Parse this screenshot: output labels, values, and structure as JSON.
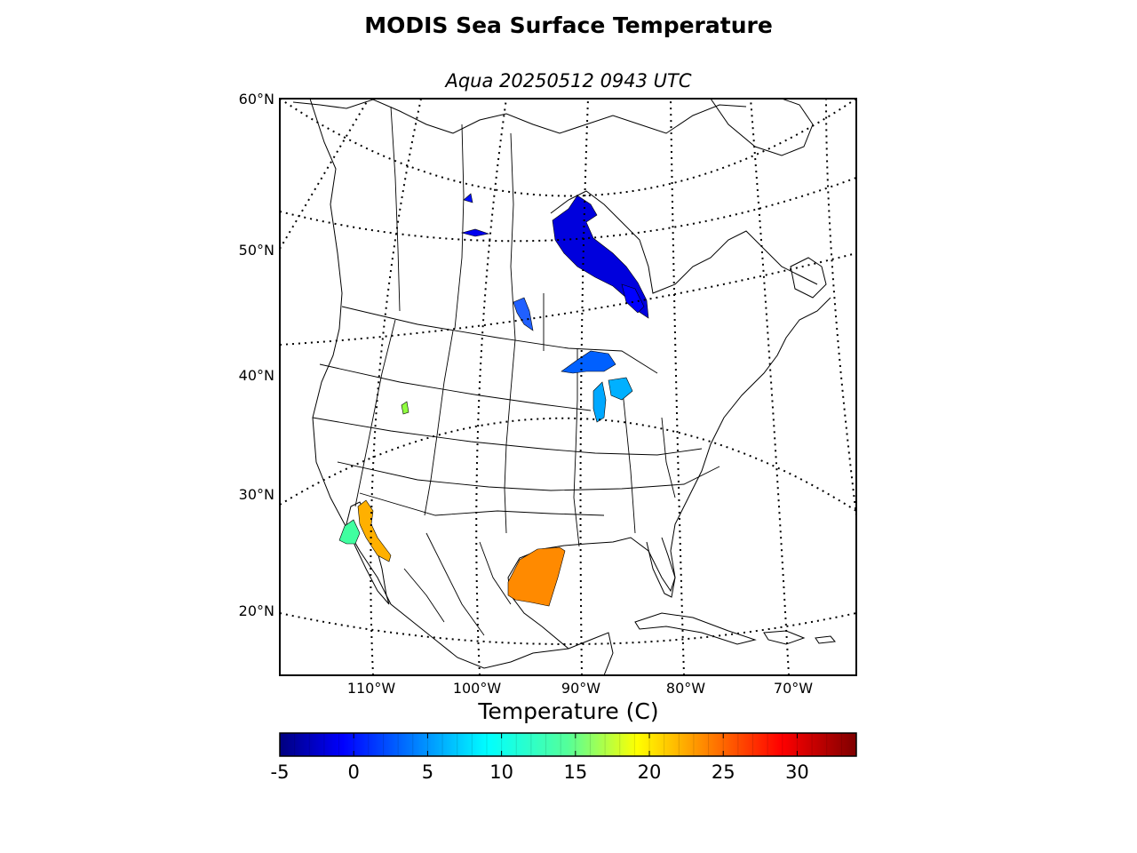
{
  "title": "MODIS Sea Surface Temperature",
  "subtitle": "Aqua 20250512 0943 UTC",
  "map": {
    "lat_labels": [
      "60°N",
      "50°N",
      "40°N",
      "30°N",
      "20°N"
    ],
    "lon_labels": [
      "110°W",
      "100°W",
      "90°W",
      "80°W",
      "70°W"
    ],
    "graticule_style": "dotted",
    "projection": "conic"
  },
  "colorbar": {
    "label": "Temperature (C)",
    "min": -5,
    "max": 34,
    "ticks": [
      "-5",
      "0",
      "5",
      "10",
      "15",
      "20",
      "25",
      "30"
    ],
    "colormap": "jet"
  },
  "sst_regions": [
    {
      "name": "Hudson Bay",
      "temperature_c": 0
    },
    {
      "name": "Great Lakes",
      "temperature_c": 6
    },
    {
      "name": "Gulf of California",
      "temperature_c": 24
    },
    {
      "name": "Gulf of Mexico",
      "temperature_c": 26
    },
    {
      "name": "Pacific off Baja California",
      "temperature_c": 14
    }
  ]
}
